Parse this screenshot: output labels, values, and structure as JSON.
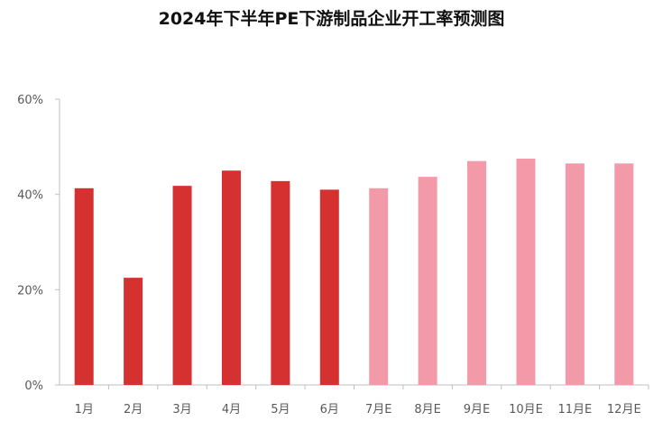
{
  "chart_data": {
    "type": "bar",
    "title": "2024年下半年PE下游制品企业开工率预测图",
    "categories": [
      "1月",
      "2月",
      "3月",
      "4月",
      "5月",
      "6月",
      "7月E",
      "8月E",
      "9月E",
      "10月E",
      "11月E",
      "12月E"
    ],
    "values": [
      41.3,
      22.5,
      41.8,
      45.0,
      42.8,
      41.0,
      41.3,
      43.7,
      47.0,
      47.5,
      46.5,
      46.5
    ],
    "actual_count": 6,
    "ylim": [
      0,
      60
    ],
    "yticks": [
      "0%",
      "20%",
      "40%",
      "60%"
    ],
    "ytick_values": [
      0,
      20,
      40,
      60
    ],
    "grid": false,
    "colors": {
      "actual": "#d63131",
      "forecast": "#f29aa7",
      "axis": "#bfbfbf"
    }
  }
}
